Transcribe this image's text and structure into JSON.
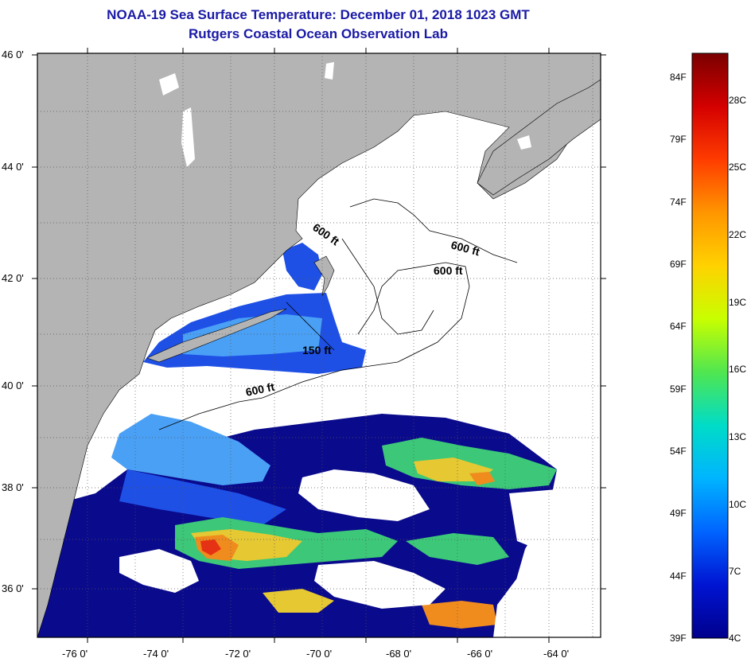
{
  "title": {
    "line1": "NOAA-19 Sea Surface Temperature:  December 01, 2018 1023 GMT",
    "line2": "Rutgers Coastal Ocean Observation Lab"
  },
  "map": {
    "lat_labels": [
      "46 0'",
      "44 0'",
      "42 0'",
      "40 0'",
      "38 0'",
      "36 0'"
    ],
    "lon_labels": [
      "-76 0'",
      "-74 0'",
      "-72 0'",
      "-70 0'",
      "-68 0'",
      "-66 0'",
      "-64 0'"
    ],
    "contour_labels": [
      "600 ft",
      "600 ft",
      "600 ft",
      "150 ft",
      "600 ft"
    ],
    "colors": {
      "land": "#b4b4b4",
      "no_data": "#ffffff",
      "deep_blue": "#0a0a8c",
      "mid_blue": "#1e50e6",
      "light_blue": "#4aa0f5",
      "warm_yellow": "#e6c832",
      "warm_orange": "#f08c1e",
      "warm_red": "#e63214"
    }
  },
  "colorbar": {
    "fahrenheit": [
      "84F",
      "79F",
      "74F",
      "69F",
      "64F",
      "59F",
      "54F",
      "49F",
      "44F",
      "39F"
    ],
    "celsius": [
      "28C",
      "25C",
      "22C",
      "19C",
      "16C",
      "13C",
      "10C",
      "7C",
      "4C"
    ],
    "gradient": [
      "#7a0000",
      "#d40000",
      "#ff3c00",
      "#ff9600",
      "#ffd200",
      "#c8ff00",
      "#50e650",
      "#00dcc8",
      "#00b4ff",
      "#0064ff",
      "#0014d2",
      "#00008c"
    ]
  }
}
